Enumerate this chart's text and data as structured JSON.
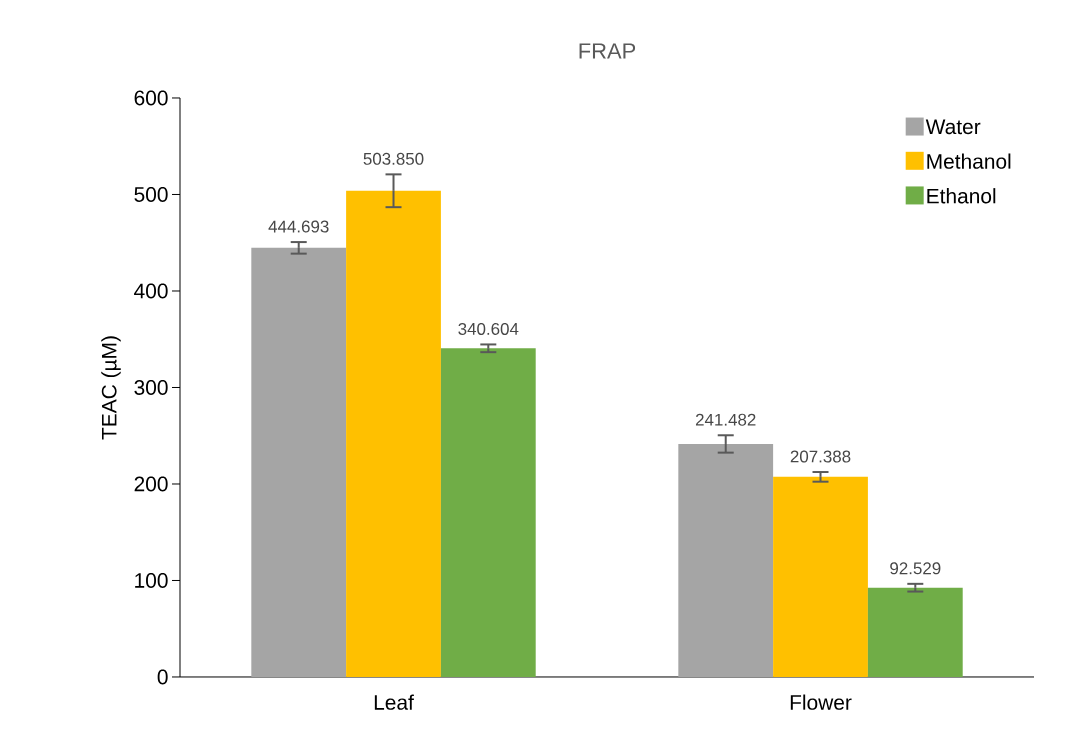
{
  "chart_data": {
    "type": "bar",
    "title": "FRAP",
    "ylabel": "TEAC (µM)",
    "categories": [
      "Leaf",
      "Flower"
    ],
    "series": [
      {
        "name": "Water",
        "color": "#a5a5a5",
        "values": [
          444.693,
          241.482
        ],
        "errors": [
          6,
          9
        ],
        "value_labels": [
          "444.693",
          "241.482"
        ]
      },
      {
        "name": "Methanol",
        "color": "#ffc000",
        "values": [
          503.85,
          207.388
        ],
        "errors": [
          17,
          5
        ],
        "value_labels": [
          "503.850",
          "207.388"
        ]
      },
      {
        "name": "Ethanol",
        "color": "#70ad47",
        "values": [
          340.604,
          92.529
        ],
        "errors": [
          4,
          4
        ],
        "value_labels": [
          "340.604",
          "92.529"
        ]
      }
    ],
    "ylim": [
      0,
      600
    ],
    "yticks": [
      0,
      100,
      200,
      300,
      400,
      500,
      600
    ],
    "legend": "top right"
  }
}
